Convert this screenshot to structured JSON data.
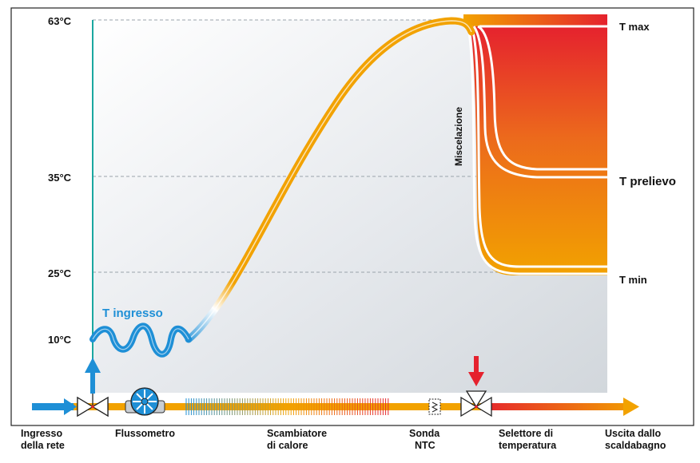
{
  "y_ticks": [
    {
      "value": "63°C"
    },
    {
      "value": "35°C"
    },
    {
      "value": "25°C"
    },
    {
      "value": "10°C"
    }
  ],
  "curve_labels": {
    "inlet": "T ingresso",
    "mixing": "Miscelazione",
    "t_max": "T max",
    "t_draw": "T prelievo",
    "t_min": "T min"
  },
  "components": {
    "inlet": [
      "Ingresso",
      "della rete"
    ],
    "flowmeter": [
      "Flussometro"
    ],
    "exchanger": [
      "Scambiatore",
      "di calore"
    ],
    "ntc": [
      "Sonda",
      "NTC"
    ],
    "selector": [
      "Selettore di",
      "temperatura"
    ],
    "outlet": [
      "Uscita dallo",
      "scaldabagno"
    ]
  },
  "colors": {
    "cold": "#1e8fd6",
    "hot": "#e5222e",
    "warm": "#f2a200",
    "axis": "#1aa7a0",
    "grid": "#9aa3ab"
  }
}
